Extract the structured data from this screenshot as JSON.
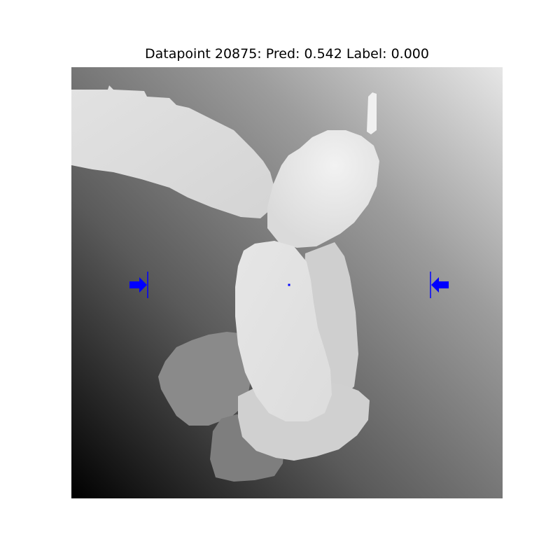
{
  "figure": {
    "title": "Datapoint 20875: Pred: 0.542 Label: 0.000"
  },
  "colors": {
    "marker": "#0000ff",
    "background": "#ffffff"
  },
  "image": {
    "kind": "grayscale depth image",
    "subject": "grasp target with left and right gripper markers",
    "colormap": "gray"
  },
  "markers": [
    {
      "name": "left-gripper-arrow",
      "direction": "right"
    },
    {
      "name": "right-gripper-arrow",
      "direction": "left"
    },
    {
      "name": "grasp-center-point"
    }
  ]
}
